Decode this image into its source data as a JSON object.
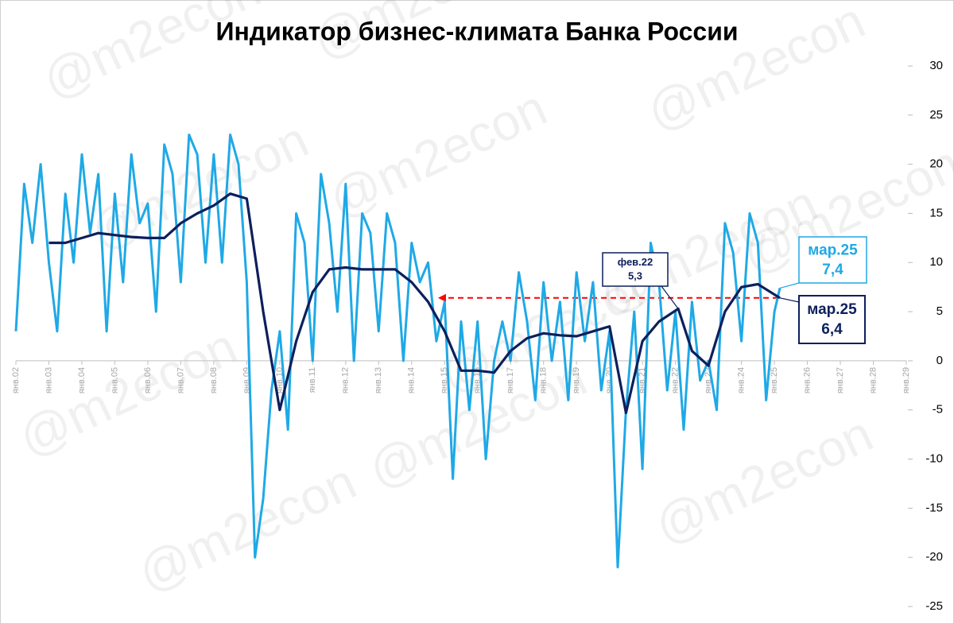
{
  "chart_data": {
    "type": "line",
    "title": "Индикатор бизнес-климата Банка России",
    "watermark": "@m2econ",
    "xlim": [
      2002,
      2029
    ],
    "xticks": [
      {
        "value": 2002,
        "label": "янв.02"
      },
      {
        "value": 2003,
        "label": "янв.03"
      },
      {
        "value": 2004,
        "label": "янв.04"
      },
      {
        "value": 2005,
        "label": "янв.05"
      },
      {
        "value": 2006,
        "label": "янв.06"
      },
      {
        "value": 2007,
        "label": "янв.07"
      },
      {
        "value": 2008,
        "label": "янв.08"
      },
      {
        "value": 2009,
        "label": "янв.09"
      },
      {
        "value": 2010,
        "label": "янв.10"
      },
      {
        "value": 2011,
        "label": "янв.11"
      },
      {
        "value": 2012,
        "label": "янв.12"
      },
      {
        "value": 2013,
        "label": "янв.13"
      },
      {
        "value": 2014,
        "label": "янв.14"
      },
      {
        "value": 2015,
        "label": "янв.15"
      },
      {
        "value": 2016,
        "label": "янв.16"
      },
      {
        "value": 2017,
        "label": "янв.17"
      },
      {
        "value": 2018,
        "label": "янв.18"
      },
      {
        "value": 2019,
        "label": "янв.19"
      },
      {
        "value": 2020,
        "label": "янв.20"
      },
      {
        "value": 2021,
        "label": "янв.21"
      },
      {
        "value": 2022,
        "label": "янв.22"
      },
      {
        "value": 2023,
        "label": "янв.23"
      },
      {
        "value": 2024,
        "label": "янв.24"
      },
      {
        "value": 2025,
        "label": "янв.25"
      },
      {
        "value": 2026,
        "label": "янв.26"
      },
      {
        "value": 2027,
        "label": "янв.27"
      },
      {
        "value": 2028,
        "label": "янв.28"
      },
      {
        "value": 2029,
        "label": "янв.29"
      }
    ],
    "ylim": [
      -25,
      30
    ],
    "yticks": [
      -25,
      -20,
      -15,
      -10,
      -5,
      0,
      5,
      10,
      15,
      20,
      25,
      30
    ],
    "series": [
      {
        "color": "#1fa9e6",
        "x": [
          2002,
          2002.25,
          2002.5,
          2002.75,
          2003,
          2003.25,
          2003.5,
          2003.75,
          2004,
          2004.25,
          2004.5,
          2004.75,
          2005,
          2005.25,
          2005.5,
          2005.75,
          2006,
          2006.25,
          2006.5,
          2006.75,
          2007,
          2007.25,
          2007.5,
          2007.75,
          2008,
          2008.25,
          2008.5,
          2008.75,
          2009,
          2009.25,
          2009.5,
          2009.75,
          2010,
          2010.25,
          2010.5,
          2010.75,
          2011,
          2011.25,
          2011.5,
          2011.75,
          2012,
          2012.25,
          2012.5,
          2012.75,
          2013,
          2013.25,
          2013.5,
          2013.75,
          2014,
          2014.25,
          2014.5,
          2014.75,
          2015,
          2015.25,
          2015.5,
          2015.75,
          2016,
          2016.25,
          2016.5,
          2016.75,
          2017,
          2017.25,
          2017.5,
          2017.75,
          2018,
          2018.25,
          2018.5,
          2018.75,
          2019,
          2019.25,
          2019.5,
          2019.75,
          2020,
          2020.25,
          2020.5,
          2020.75,
          2021,
          2021.25,
          2021.5,
          2021.75,
          2022,
          2022.25,
          2022.5,
          2022.75,
          2023,
          2023.25,
          2023.5,
          2023.75,
          2024,
          2024.25,
          2024.5,
          2024.75,
          2025,
          2025.167
        ],
        "values": [
          3,
          18,
          12,
          20,
          10,
          3,
          17,
          10,
          21,
          13,
          19,
          3,
          17,
          8,
          21,
          14,
          16,
          5,
          22,
          19,
          8,
          23,
          21,
          10,
          21,
          10,
          23,
          20,
          8,
          -20,
          -14,
          -3,
          3,
          -7,
          15,
          12,
          0,
          19,
          14,
          5,
          18,
          0,
          15,
          13,
          3,
          15,
          12,
          0,
          12,
          8,
          10,
          2,
          6,
          -12,
          4,
          -5,
          4,
          -10,
          0,
          4,
          0,
          9,
          4,
          -4,
          8,
          0,
          6,
          -4,
          9,
          2,
          8,
          -3,
          3,
          -21,
          -5,
          5,
          -11,
          12,
          8,
          -3,
          5,
          -7,
          6,
          -2,
          0,
          -5,
          14,
          11,
          2,
          15,
          12,
          -4,
          5,
          7.4
        ]
      },
      {
        "color": "#0d1f5c",
        "x": [
          2003,
          2003.5,
          2004,
          2004.5,
          2005,
          2005.5,
          2006,
          2006.5,
          2007,
          2007.5,
          2008,
          2008.5,
          2009,
          2009.5,
          2010,
          2010.5,
          2011,
          2011.5,
          2012,
          2012.5,
          2013,
          2013.5,
          2014,
          2014.5,
          2015,
          2015.5,
          2016,
          2016.5,
          2017,
          2017.5,
          2018,
          2018.5,
          2019,
          2019.5,
          2020,
          2020.5,
          2021,
          2021.5,
          2022.083,
          2022.5,
          2023,
          2023.5,
          2024,
          2024.5,
          2025.167
        ],
        "values": [
          12,
          12,
          12.5,
          13,
          12.8,
          12.6,
          12.5,
          12.5,
          14,
          15,
          15.8,
          17,
          16.5,
          5,
          -5,
          2,
          7,
          9.3,
          9.5,
          9.3,
          9.3,
          9.3,
          8,
          6,
          3,
          -1,
          -1,
          -1.2,
          1,
          2.3,
          2.8,
          2.6,
          2.5,
          3,
          3.5,
          -5.3,
          2,
          4,
          5.3,
          1,
          -0.5,
          5,
          7.5,
          7.8,
          6.4
        ]
      }
    ],
    "annotations": [
      {
        "label": "фев.22",
        "value_label": "5,3",
        "x": 2022.083,
        "y": 5.3,
        "color": "#0d1f5c"
      },
      {
        "label": "мар.25",
        "value_label": "7,4",
        "x": 2025.167,
        "y": 7.4,
        "color": "#1fa9e6"
      },
      {
        "label": "мар.25",
        "value_label": "6,4",
        "x": 2025.167,
        "y": 6.4,
        "color": "#0d1f5c"
      }
    ],
    "reference_line": {
      "value": 6.4,
      "from_x": 2014.8,
      "color": "#ff0000"
    }
  }
}
